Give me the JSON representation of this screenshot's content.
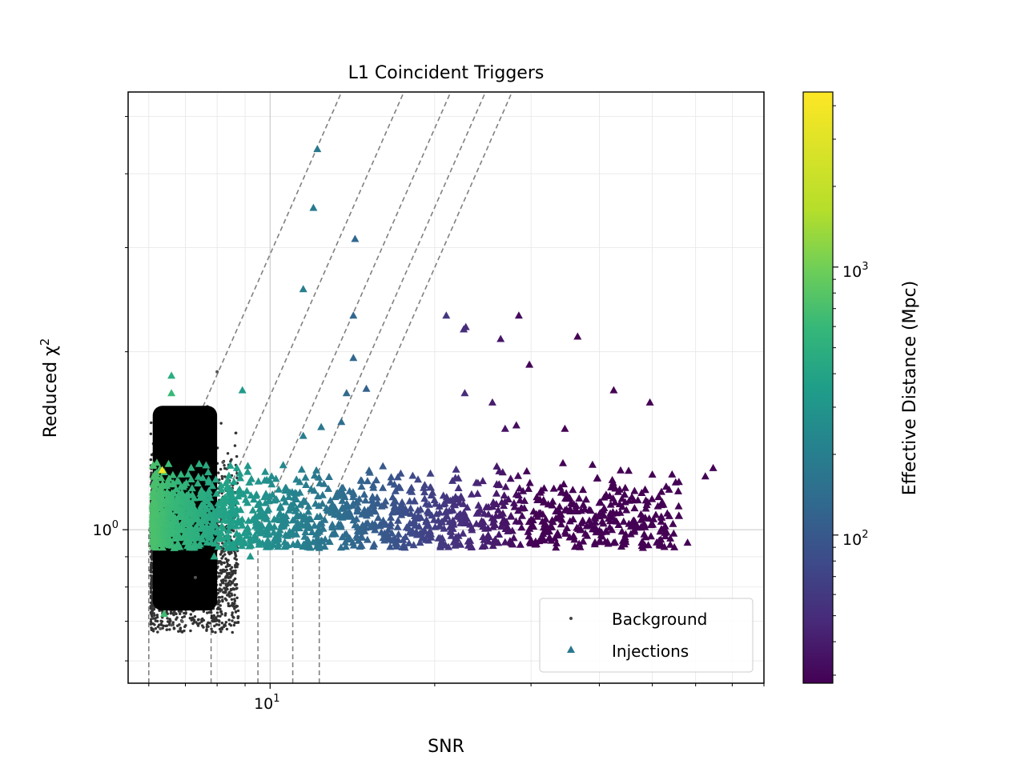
{
  "chart_data": {
    "type": "scatter",
    "title": "L1 Coincident Triggers",
    "xlabel": "SNR",
    "ylabel_text": "Reduced χ",
    "ylabel_sup": "2",
    "x_scale": "log",
    "y_scale": "log",
    "xlim": [
      5.5,
      80
    ],
    "ylim": [
      0.55,
      5.5
    ],
    "x_ticks": [
      {
        "value": 10,
        "base": "10",
        "exp": "1"
      }
    ],
    "y_ticks": [
      {
        "value": 1,
        "base": "10",
        "exp": "0"
      }
    ],
    "grid": true,
    "legend_position": "lower-right",
    "series": [
      {
        "name": "Background",
        "marker": "dot",
        "color": "#000000",
        "region": {
          "snr_min": 6.1,
          "snr_max": 8.0,
          "chi_min": 0.73,
          "chi_max": 1.62
        },
        "points": [
          [
            6.3,
            0.68
          ],
          [
            6.6,
            0.69
          ],
          [
            6.9,
            0.7
          ],
          [
            8.0,
            1.85
          ],
          [
            7.3,
            0.83
          ],
          [
            8.2,
            1.3
          ]
        ]
      },
      {
        "name": "Injections",
        "marker": "triangle",
        "color": "#2a788e",
        "points": [
          [
            12.2,
            4.4
          ],
          [
            12.0,
            3.5
          ],
          [
            14.3,
            3.1
          ],
          [
            11.5,
            2.55
          ],
          [
            14.2,
            2.3
          ],
          [
            14.2,
            1.95
          ],
          [
            21.0,
            2.3
          ],
          [
            22.8,
            2.2
          ],
          [
            22.6,
            2.18
          ],
          [
            28.5,
            2.3
          ],
          [
            26.4,
            2.1
          ],
          [
            36.5,
            2.12
          ],
          [
            29.8,
            1.9
          ],
          [
            8.9,
            1.72
          ],
          [
            6.6,
            1.7
          ],
          [
            13.8,
            1.7
          ],
          [
            15.0,
            1.73
          ],
          [
            22.7,
            1.7
          ],
          [
            42.5,
            1.72
          ],
          [
            25.5,
            1.64
          ],
          [
            49.5,
            1.64
          ],
          [
            28.2,
            1.5
          ],
          [
            26.9,
            1.48
          ],
          [
            34.6,
            1.48
          ],
          [
            13.5,
            1.52
          ],
          [
            11.5,
            1.44
          ],
          [
            12.4,
            1.49
          ],
          [
            64.6,
            1.27
          ],
          [
            62.5,
            1.23
          ],
          [
            58.0,
            0.95
          ],
          [
            6.4,
            0.72
          ],
          [
            7.9,
            0.9
          ],
          [
            6.4,
            1.25
          ],
          [
            9.2,
            0.9
          ]
        ],
        "cloud": {
          "snr_min": 6.1,
          "snr_max": 56,
          "chi_min": 0.93,
          "chi_max": 1.3,
          "count": 1600
        }
      }
    ],
    "threshold_curves": [
      {
        "snr0": 6.0,
        "slope": 2.1
      },
      {
        "snr0": 7.8,
        "slope": 2.1
      },
      {
        "snr0": 9.5,
        "slope": 2.1
      },
      {
        "snr0": 11.0,
        "slope": 2.1
      },
      {
        "snr0": 12.3,
        "slope": 2.1
      }
    ],
    "colorbar": {
      "label": "Effective Distance (Mpc)",
      "colormap": "viridis",
      "scale": "log",
      "range": [
        28,
        4500
      ],
      "ticks": [
        {
          "value": 100,
          "base": "10",
          "exp": "2"
        },
        {
          "value": 1000,
          "base": "10",
          "exp": "3"
        }
      ]
    }
  }
}
